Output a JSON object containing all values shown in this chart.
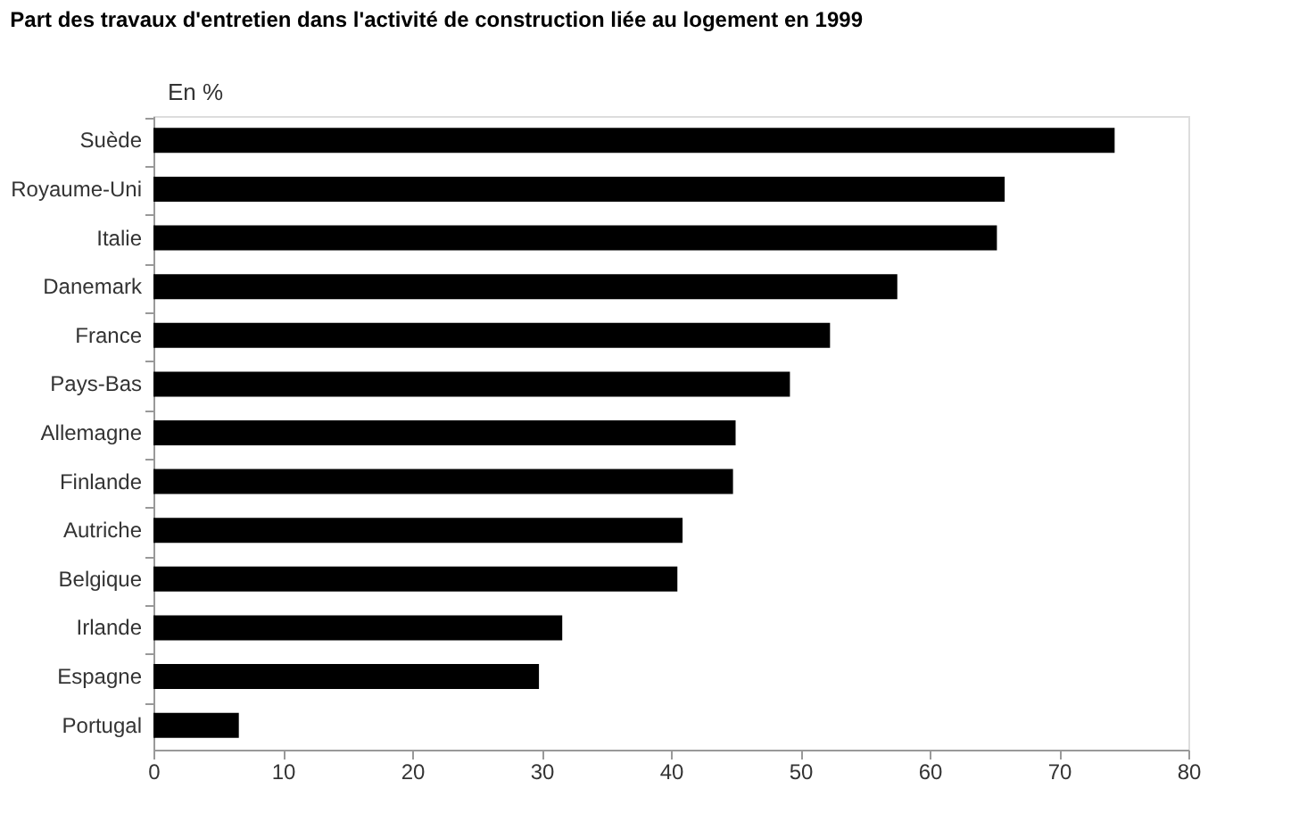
{
  "chart_data": {
    "type": "bar",
    "orientation": "horizontal",
    "title": "Part des travaux d'entretien dans l'activité de construction liée au logement en 1999",
    "annotations": [
      "En %"
    ],
    "categories": [
      "Suède",
      "Royaume-Uni",
      "Italie",
      "Danemark",
      "France",
      "Pays-Bas",
      "Allemagne",
      "Finlande",
      "Autriche",
      "Belgique",
      "Irlande",
      "Espagne",
      "Portugal"
    ],
    "values": [
      74.3,
      65.8,
      65.2,
      57.5,
      52.3,
      49.2,
      45.0,
      44.8,
      40.9,
      40.5,
      31.6,
      29.8,
      6.6
    ],
    "color": "#000000",
    "xlim": [
      0,
      80
    ],
    "xticks": [
      0,
      10,
      20,
      30,
      40,
      50,
      60,
      70,
      80
    ],
    "grid": false
  }
}
